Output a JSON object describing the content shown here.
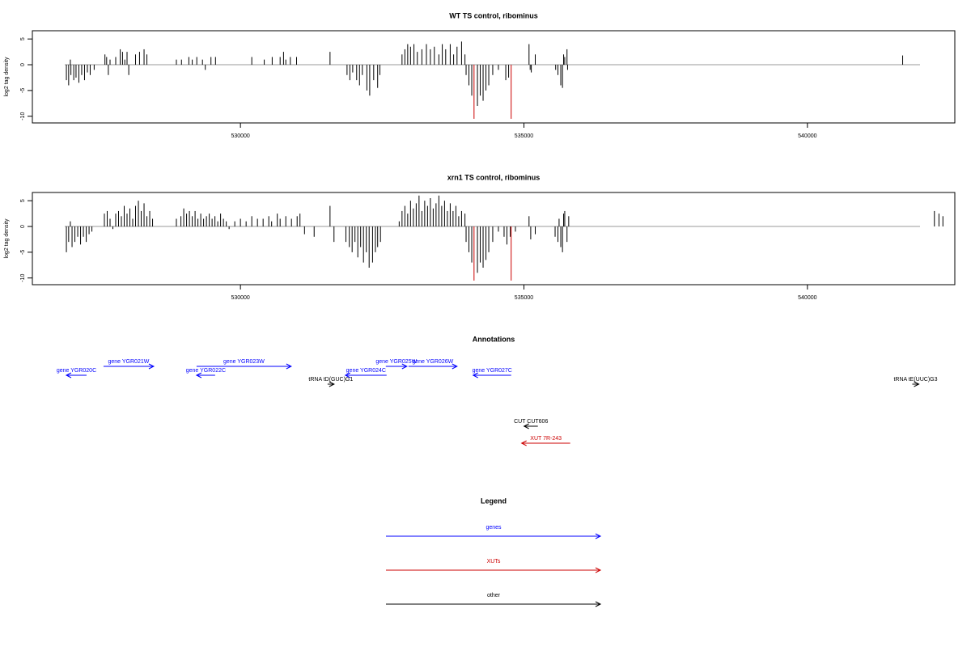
{
  "chart_data": [
    {
      "type": "density",
      "title": "WT TS control, ribominus",
      "ylabel": "log2 tag density",
      "xlim": [
        526330,
        542600
      ],
      "ylim": [
        -11.3,
        6.6
      ],
      "xticks": [
        530000,
        535000,
        540000
      ],
      "yticks": [
        5,
        0,
        -5,
        -10
      ],
      "series": [
        {
          "color": "#000000",
          "x": [
            526930,
            526970,
            527000,
            527010,
            527060,
            527100,
            527150,
            527200,
            527250,
            527300,
            527350,
            527420,
            527610,
            527640,
            527670,
            527700,
            527800,
            527880,
            527920,
            527960,
            528000,
            528030,
            528150,
            528220,
            528300,
            528350,
            528870,
            528960,
            529090,
            529150,
            529230,
            529330,
            529380,
            529480,
            529560,
            530200,
            530420,
            530560,
            530700,
            530760,
            530800,
            530880,
            530990,
            531580,
            531880,
            531930,
            531980,
            532050,
            532100,
            532150,
            532230,
            532280,
            532350,
            532420,
            532460,
            532850,
            532900,
            532950,
            533000,
            533060,
            533120,
            533200,
            533280,
            533350,
            533420,
            533500,
            533560,
            533620,
            533700,
            533760,
            533820,
            533900,
            533960,
            533980,
            534030,
            534080,
            534180,
            534230,
            534280,
            534330,
            534380,
            534450,
            534550,
            534680,
            534730,
            535090,
            535110,
            535130,
            535200,
            535560,
            535600,
            535650,
            535680,
            535700,
            535720,
            535760,
            535770,
            541680
          ],
          "values": [
            -3,
            -4,
            1,
            -2,
            -3,
            -2.5,
            -3.5,
            -2,
            -3,
            -1.5,
            -2,
            -1,
            2,
            1.5,
            -2,
            1,
            1.5,
            3,
            2.5,
            1,
            2.5,
            -2,
            2,
            2.5,
            3,
            2,
            1,
            1,
            1.5,
            1,
            1.5,
            1,
            -1,
            1.5,
            1.5,
            1.5,
            1,
            1.5,
            1.5,
            2.5,
            1,
            1.5,
            1.5,
            2.5,
            -2,
            -3,
            -1.5,
            -3,
            -4,
            -2,
            -5,
            -6,
            -3,
            -4.5,
            -2,
            2,
            3,
            4,
            3.5,
            4,
            2.5,
            3,
            4,
            3,
            3.5,
            2,
            4,
            3,
            4,
            2,
            3.5,
            4.5,
            2,
            -2,
            -4,
            -6,
            -8,
            -6,
            -7,
            -5,
            -4,
            -2,
            -1,
            -3,
            -2.5,
            4,
            -1,
            -1.5,
            2,
            -1,
            -2,
            -4,
            -4.5,
            2,
            1.5,
            3,
            -1,
            1.8
          ]
        },
        {
          "color": "#cc0000",
          "x": [
            534120,
            534775
          ],
          "values": [
            -10.5,
            -10.5
          ]
        }
      ]
    },
    {
      "type": "density",
      "title": "xrn1 TS control, ribominus",
      "ylabel": "log2 tag density",
      "xlim": [
        526330,
        542600
      ],
      "ylim": [
        -11.3,
        6.6
      ],
      "xticks": [
        530000,
        535000,
        540000
      ],
      "yticks": [
        5,
        0,
        -5,
        -10
      ],
      "series": [
        {
          "color": "#000000",
          "x": [
            526930,
            526970,
            527000,
            527030,
            527080,
            527130,
            527180,
            527230,
            527280,
            527330,
            527380,
            527600,
            527650,
            527700,
            527750,
            527800,
            527850,
            527900,
            527950,
            528000,
            528050,
            528100,
            528150,
            528200,
            528250,
            528300,
            528350,
            528400,
            528450,
            528870,
            528950,
            529000,
            529050,
            529100,
            529150,
            529200,
            529250,
            529300,
            529350,
            529400,
            529450,
            529500,
            529550,
            529600,
            529650,
            529700,
            529750,
            529800,
            529900,
            530000,
            530100,
            530200,
            530300,
            530400,
            530500,
            530550,
            530650,
            530700,
            530800,
            530900,
            531000,
            531050,
            531130,
            531300,
            531580,
            531650,
            531860,
            531920,
            531970,
            532020,
            532070,
            532120,
            532170,
            532220,
            532270,
            532330,
            532380,
            532420,
            532470,
            532800,
            532850,
            532900,
            532950,
            533000,
            533050,
            533100,
            533150,
            533200,
            533250,
            533300,
            533350,
            533400,
            533450,
            533500,
            533550,
            533600,
            533650,
            533700,
            533750,
            533800,
            533850,
            533900,
            533960,
            533980,
            534030,
            534080,
            534180,
            534230,
            534280,
            534330,
            534380,
            534450,
            534550,
            534650,
            534700,
            534760,
            534850,
            535090,
            535120,
            535200,
            535550,
            535600,
            535620,
            535650,
            535680,
            535700,
            535720,
            535760,
            535790,
            542240,
            542320,
            542390
          ],
          "values": [
            -5,
            -3,
            1,
            -4,
            -3,
            -2,
            -3.5,
            -2,
            -3,
            -1.5,
            -1,
            2.5,
            3,
            1.5,
            -0.5,
            2.5,
            3,
            2,
            4,
            2.5,
            3.5,
            1.5,
            4,
            5,
            3,
            4.5,
            2,
            3,
            1.5,
            1.5,
            2,
            3.5,
            2.5,
            3,
            2,
            3,
            1.5,
            2.5,
            1.5,
            2,
            2.5,
            1.5,
            2,
            1,
            2.5,
            1.5,
            1,
            -0.5,
            1,
            1.5,
            1,
            2,
            1.5,
            1.5,
            2,
            1,
            2.5,
            1.5,
            2,
            1.5,
            2,
            2.5,
            -1.5,
            -2,
            4,
            -3,
            -3,
            -4,
            -5,
            -3,
            -6,
            -4,
            -7,
            -5,
            -8,
            -7,
            -5,
            -4,
            -3,
            1,
            3,
            4,
            2.5,
            5,
            3.5,
            4.5,
            6,
            3,
            5,
            4,
            5.5,
            3.5,
            4.5,
            6,
            4,
            5,
            3,
            4.5,
            3,
            4,
            2,
            3,
            2.5,
            -3,
            -5,
            -7,
            -9,
            -7,
            -8,
            -6.5,
            -5,
            -3,
            -1,
            -2,
            -3.5,
            -2,
            -1,
            2,
            -2.5,
            -1.5,
            -2,
            -3,
            1.5,
            -4,
            -5,
            2.5,
            3,
            -3,
            2,
            3,
            2.5,
            2
          ]
        },
        {
          "color": "#cc0000",
          "x": [
            534120,
            534775
          ],
          "values": [
            -10.5,
            -10.5
          ]
        }
      ]
    },
    {
      "type": "annotation",
      "title": "Annotations",
      "xlim": [
        526330,
        542600
      ],
      "features": [
        {
          "label": "gene YGR020C",
          "start": 526929,
          "end": 527286,
          "strand": "-",
          "color": "#0000ff"
        },
        {
          "label": "gene YGR021W",
          "start": 527585,
          "end": 528470,
          "strand": "+",
          "color": "#0000ff"
        },
        {
          "label": "gene YGR022C",
          "start": 529226,
          "end": 529554,
          "strand": "-",
          "color": "#0000ff"
        },
        {
          "label": "gene YGR023W",
          "start": 529226,
          "end": 530895,
          "strand": "+",
          "color": "#0000ff"
        },
        {
          "label": "tRNA tD(GUC)G1",
          "start": 531537,
          "end": 531651,
          "strand": "+",
          "color": "#000000"
        },
        {
          "label": "gene YGR024C",
          "start": 531851,
          "end": 532578,
          "strand": "-",
          "color": "#0000ff"
        },
        {
          "label": "gene YGR025W",
          "start": 532564,
          "end": 532935,
          "strand": "+",
          "color": "#0000ff"
        },
        {
          "label": "gene YGR026W",
          "start": 532964,
          "end": 533820,
          "strand": "+",
          "color": "#0000ff"
        },
        {
          "label": "gene YGR027C",
          "start": 534104,
          "end": 534775,
          "strand": "-",
          "color": "#0000ff"
        },
        {
          "label": "tRNA tE(UUC)G3",
          "start": 541850,
          "end": 541965,
          "strand": "+",
          "color": "#000000"
        },
        {
          "label": "CUT CUT606",
          "start": 535003,
          "end": 535246,
          "strand": "-",
          "color": "#000000"
        },
        {
          "label": "XUT 7R-243",
          "start": 534960,
          "end": 535816,
          "strand": "-",
          "color": "#cc0000"
        }
      ]
    },
    {
      "type": "legend",
      "title": "Legend",
      "entries": [
        {
          "name": "genes",
          "color": "#0000ff"
        },
        {
          "name": "XUTs",
          "color": "#cc0000"
        },
        {
          "name": "other",
          "color": "#000000"
        }
      ]
    }
  ]
}
